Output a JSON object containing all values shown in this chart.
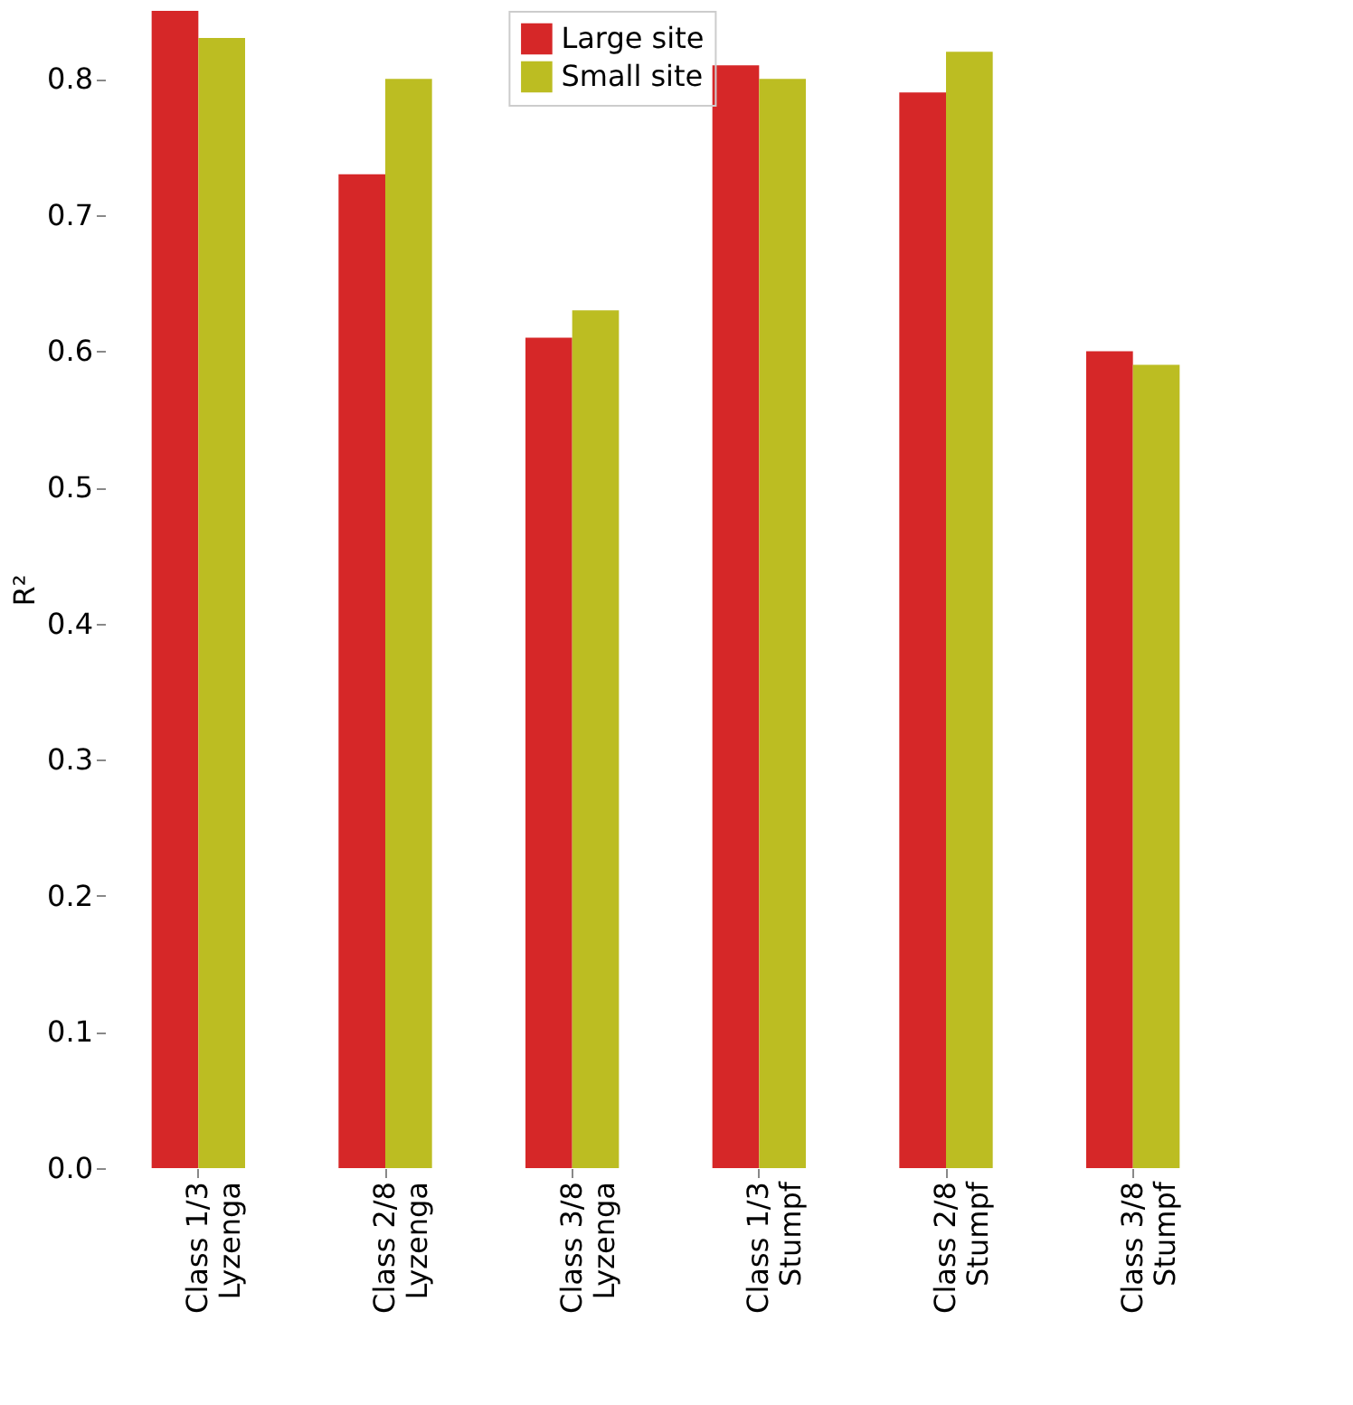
{
  "chart_data": {
    "type": "bar",
    "ylabel": "R²",
    "categories": [
      "Class 1/3\nLyzenga",
      "Class 2/8\nLyzenga",
      "Class 3/8\nLyzenga",
      "Class 1/3\nStumpf",
      "Class 2/8\nStumpf",
      "Class 3/8\nStumpf"
    ],
    "series": [
      {
        "name": "Large site",
        "color": "#d62728",
        "values": [
          0.85,
          0.73,
          0.61,
          0.81,
          0.79,
          0.6
        ]
      },
      {
        "name": "Small site",
        "color": "#bcbd22",
        "values": [
          0.83,
          0.8,
          0.63,
          0.8,
          0.82,
          0.59
        ]
      }
    ],
    "ylim": [
      0,
      0.85
    ],
    "yticks": [
      {
        "value": 0,
        "label": "0.0"
      },
      0.1,
      0.2,
      0.3,
      0.4,
      0.5,
      0.6,
      0.7,
      0.8
    ],
    "grid": false,
    "legend": "top"
  }
}
